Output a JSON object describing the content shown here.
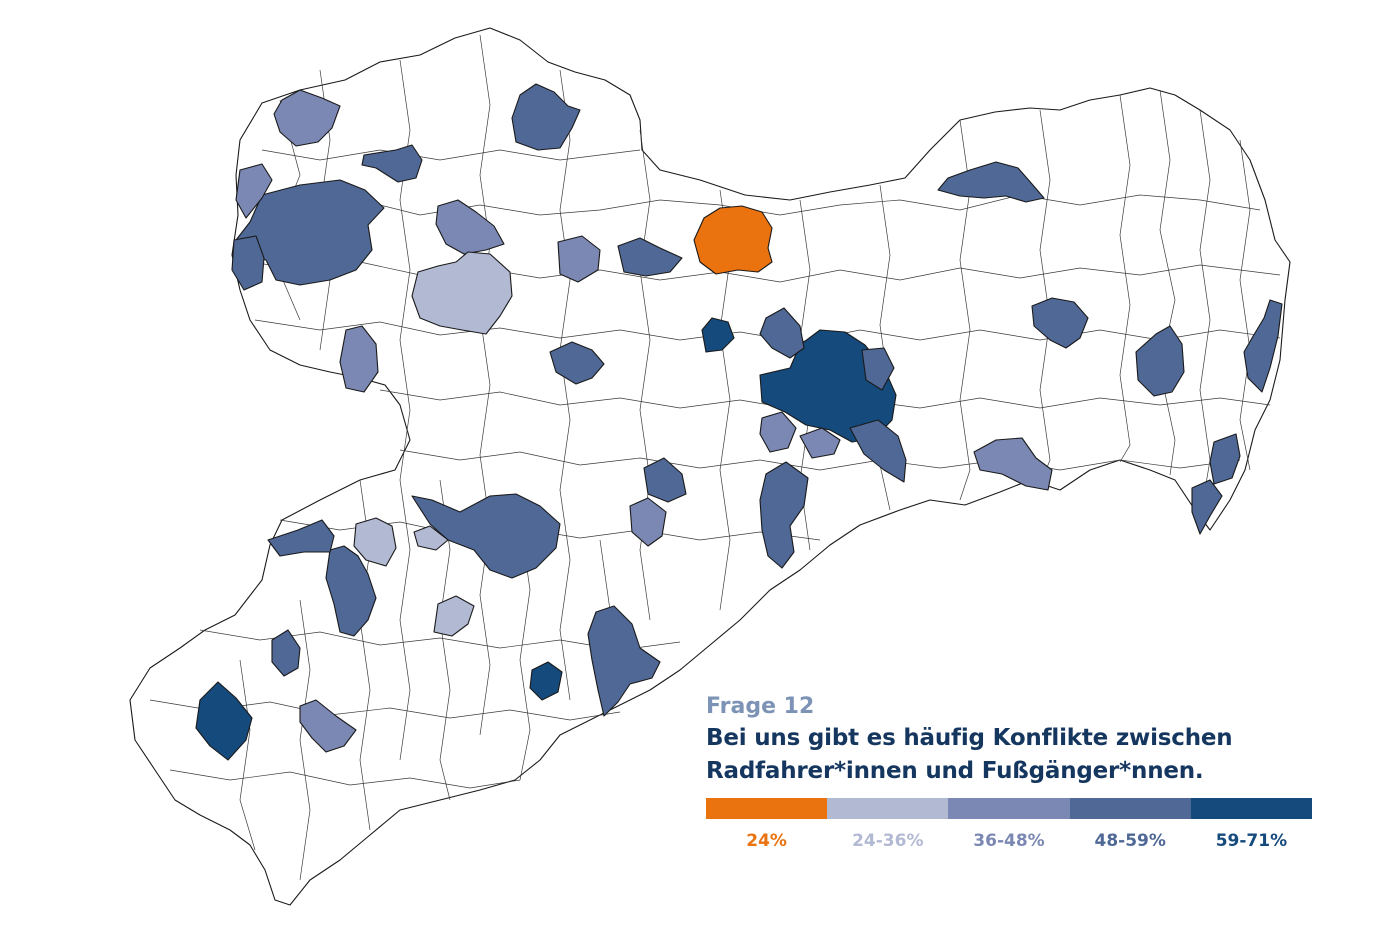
{
  "legend": {
    "label": "Frage 12",
    "title_line1": "Bei uns gibt es häufig Konflikte zwischen",
    "title_line2": "Radfahrer*innen und Fußgänger*nnen.",
    "categories": [
      {
        "label": "24%",
        "color": "#ea720f"
      },
      {
        "label": "24-36%",
        "color": "#b1b9d3"
      },
      {
        "label": "36-48%",
        "color": "#7a88b3"
      },
      {
        "label": "48-59%",
        "color": "#4f6896"
      },
      {
        "label": "59-71%",
        "color": "#154a7c"
      }
    ]
  },
  "map": {
    "outline_color": "#1a1a1a",
    "background_fill": "#ffffff"
  }
}
